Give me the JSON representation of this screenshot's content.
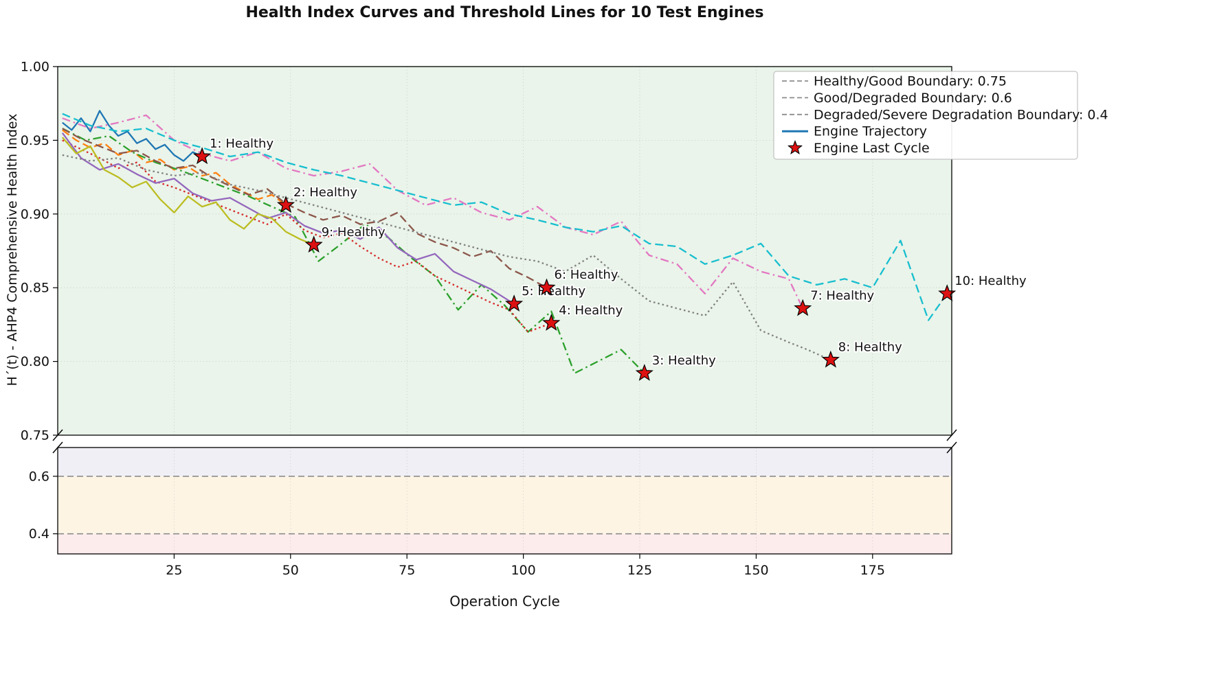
{
  "chart_data": {
    "type": "line",
    "title": "Health Index Curves and Threshold Lines for 10 Test Engines",
    "xlabel": "Operation Cycle",
    "ylabel": "H´(t) - AHP4 Comprehensive Health Index",
    "xlim": [
      0,
      192
    ],
    "x_ticks": [
      25,
      50,
      75,
      100,
      125,
      150,
      175
    ],
    "top_panel": {
      "ylim": [
        0.75,
        1.0
      ],
      "yticks": [
        "1.00",
        "0.95",
        "0.90",
        "0.85",
        "0.80",
        "0.75"
      ],
      "background": "#eaf4ea"
    },
    "bottom_panel": {
      "ylim": [
        0.33,
        0.7
      ],
      "yticks": [
        "0.6",
        "0.4"
      ],
      "bands": [
        {
          "from": 0.7,
          "to": 0.6,
          "color": "#f0eff5"
        },
        {
          "from": 0.6,
          "to": 0.4,
          "color": "#fdf4e4"
        },
        {
          "from": 0.4,
          "to": 0.33,
          "color": "#fdecec"
        }
      ]
    },
    "thresholds": [
      {
        "label": "Healthy/Good Boundary: 0.75",
        "value": 0.75
      },
      {
        "label": "Good/Degraded Boundary: 0.6",
        "value": 0.6
      },
      {
        "label": "Degraded/Severe Degradation Boundary: 0.4",
        "value": 0.4
      }
    ],
    "threshold_color": "#8c8c8c",
    "legend": {
      "entries": [
        {
          "label": "Healthy/Good Boundary: 0.75",
          "sample": "dashed",
          "color": "#8c8c8c"
        },
        {
          "label": "Good/Degraded Boundary: 0.6",
          "sample": "dashed",
          "color": "#8c8c8c"
        },
        {
          "label": "Degraded/Severe Degradation Boundary: 0.4",
          "sample": "dashed",
          "color": "#8c8c8c"
        },
        {
          "label": "Engine Trajectory",
          "sample": "solid",
          "color": "#1f77b4"
        },
        {
          "label": "Engine Last Cycle",
          "sample": "star",
          "color": "#dd1111"
        }
      ]
    },
    "marker": {
      "color": "#dd1111",
      "edge": "#000000"
    },
    "series": [
      {
        "name": "Engine 1",
        "status_label": "1: Healthy",
        "color": "#1f77b4",
        "linestyle": "solid",
        "x": [
          1,
          3,
          5,
          7,
          9,
          11,
          13,
          15,
          17,
          19,
          21,
          23,
          25,
          27,
          29,
          31
        ],
        "y": [
          0.962,
          0.957,
          0.965,
          0.956,
          0.97,
          0.96,
          0.953,
          0.956,
          0.948,
          0.951,
          0.944,
          0.947,
          0.94,
          0.936,
          0.942,
          0.939
        ]
      },
      {
        "name": "Engine 2",
        "status_label": "2: Healthy",
        "color": "#ff7f0e",
        "linestyle": "dashed",
        "x": [
          1,
          4,
          7,
          10,
          13,
          16,
          19,
          22,
          25,
          28,
          31,
          34,
          37,
          40,
          43,
          46,
          49
        ],
        "y": [
          0.957,
          0.95,
          0.945,
          0.948,
          0.94,
          0.943,
          0.935,
          0.937,
          0.93,
          0.932,
          0.926,
          0.928,
          0.92,
          0.915,
          0.91,
          0.913,
          0.906
        ]
      },
      {
        "name": "Engine 3",
        "status_label": "3: Healthy",
        "color": "#2ca02c",
        "linestyle": "dashdot",
        "x": [
          1,
          6,
          11,
          16,
          21,
          26,
          31,
          36,
          41,
          46,
          51,
          56,
          61,
          66,
          71,
          76,
          81,
          86,
          91,
          96,
          101,
          106,
          111,
          116,
          121,
          126
        ],
        "y": [
          0.958,
          0.95,
          0.953,
          0.942,
          0.935,
          0.93,
          0.924,
          0.918,
          0.912,
          0.905,
          0.898,
          0.868,
          0.88,
          0.893,
          0.884,
          0.87,
          0.858,
          0.835,
          0.852,
          0.838,
          0.82,
          0.834,
          0.792,
          0.8,
          0.808,
          0.792
        ]
      },
      {
        "name": "Engine 4",
        "status_label": "4: Healthy",
        "color": "#d62728",
        "linestyle": "dotted",
        "x": [
          1,
          5,
          9,
          13,
          17,
          21,
          25,
          29,
          33,
          37,
          41,
          45,
          49,
          53,
          57,
          61,
          65,
          69,
          73,
          77,
          81,
          85,
          89,
          93,
          97,
          101,
          106
        ],
        "y": [
          0.95,
          0.944,
          0.938,
          0.931,
          0.935,
          0.922,
          0.918,
          0.913,
          0.908,
          0.903,
          0.898,
          0.893,
          0.9,
          0.889,
          0.884,
          0.887,
          0.878,
          0.87,
          0.864,
          0.868,
          0.858,
          0.852,
          0.846,
          0.84,
          0.835,
          0.82,
          0.826
        ]
      },
      {
        "name": "Engine 5",
        "status_label": "5: Healthy",
        "color": "#9467bd",
        "linestyle": "solid",
        "x": [
          1,
          5,
          9,
          13,
          17,
          21,
          25,
          29,
          33,
          37,
          41,
          45,
          49,
          53,
          57,
          61,
          65,
          69,
          73,
          77,
          81,
          85,
          89,
          93,
          98
        ],
        "y": [
          0.955,
          0.938,
          0.93,
          0.934,
          0.927,
          0.921,
          0.924,
          0.914,
          0.909,
          0.911,
          0.904,
          0.897,
          0.901,
          0.892,
          0.887,
          0.889,
          0.883,
          0.891,
          0.877,
          0.869,
          0.873,
          0.861,
          0.855,
          0.849,
          0.839
        ]
      },
      {
        "name": "Engine 6",
        "status_label": "6: Healthy",
        "color": "#8c564b",
        "linestyle": "dashed",
        "x": [
          1,
          5,
          9,
          13,
          17,
          21,
          25,
          29,
          33,
          37,
          41,
          45,
          49,
          53,
          57,
          61,
          65,
          69,
          73,
          77,
          81,
          85,
          89,
          93,
          97,
          101,
          105
        ],
        "y": [
          0.958,
          0.951,
          0.946,
          0.941,
          0.943,
          0.936,
          0.931,
          0.933,
          0.925,
          0.919,
          0.913,
          0.917,
          0.907,
          0.901,
          0.896,
          0.899,
          0.893,
          0.895,
          0.901,
          0.887,
          0.881,
          0.877,
          0.871,
          0.875,
          0.863,
          0.857,
          0.85
        ]
      },
      {
        "name": "Engine 7",
        "status_label": "7: Healthy",
        "color": "#e377c2",
        "linestyle": "dashdot",
        "x": [
          1,
          7,
          13,
          19,
          25,
          31,
          37,
          43,
          49,
          55,
          61,
          67,
          73,
          79,
          85,
          91,
          97,
          103,
          109,
          115,
          121,
          127,
          133,
          139,
          145,
          151,
          157,
          160
        ],
        "y": [
          0.965,
          0.958,
          0.962,
          0.967,
          0.95,
          0.941,
          0.936,
          0.942,
          0.931,
          0.926,
          0.929,
          0.934,
          0.916,
          0.906,
          0.911,
          0.901,
          0.896,
          0.905,
          0.891,
          0.886,
          0.895,
          0.872,
          0.866,
          0.846,
          0.87,
          0.861,
          0.856,
          0.836
        ]
      },
      {
        "name": "Engine 8",
        "status_label": "8: Healthy",
        "color": "#7f7f7f",
        "linestyle": "dotted",
        "x": [
          1,
          7,
          13,
          19,
          25,
          31,
          37,
          43,
          49,
          55,
          61,
          67,
          73,
          79,
          85,
          91,
          97,
          103,
          109,
          115,
          121,
          127,
          133,
          139,
          145,
          151,
          157,
          161,
          166
        ],
        "y": [
          0.94,
          0.936,
          0.938,
          0.93,
          0.926,
          0.928,
          0.92,
          0.916,
          0.911,
          0.906,
          0.901,
          0.896,
          0.891,
          0.886,
          0.881,
          0.876,
          0.871,
          0.868,
          0.861,
          0.872,
          0.856,
          0.841,
          0.836,
          0.831,
          0.854,
          0.821,
          0.813,
          0.808,
          0.801
        ]
      },
      {
        "name": "Engine 9",
        "status_label": "9: Healthy",
        "color": "#bcbd22",
        "linestyle": "solid",
        "x": [
          1,
          4,
          7,
          10,
          13,
          16,
          19,
          22,
          25,
          28,
          31,
          34,
          37,
          40,
          43,
          46,
          49,
          52,
          55
        ],
        "y": [
          0.952,
          0.941,
          0.946,
          0.93,
          0.925,
          0.918,
          0.922,
          0.91,
          0.901,
          0.912,
          0.905,
          0.908,
          0.896,
          0.89,
          0.9,
          0.897,
          0.888,
          0.883,
          0.879
        ]
      },
      {
        "name": "Engine 10",
        "status_label": "10: Healthy",
        "color": "#17becf",
        "linestyle": "dashed",
        "x": [
          1,
          7,
          13,
          19,
          25,
          31,
          37,
          43,
          49,
          55,
          61,
          67,
          73,
          79,
          85,
          91,
          97,
          103,
          109,
          115,
          121,
          127,
          133,
          139,
          145,
          151,
          157,
          163,
          169,
          175,
          181,
          187,
          191
        ],
        "y": [
          0.968,
          0.96,
          0.956,
          0.958,
          0.95,
          0.945,
          0.939,
          0.942,
          0.935,
          0.93,
          0.926,
          0.921,
          0.916,
          0.911,
          0.906,
          0.908,
          0.9,
          0.896,
          0.891,
          0.888,
          0.892,
          0.88,
          0.878,
          0.866,
          0.872,
          0.88,
          0.858,
          0.852,
          0.856,
          0.85,
          0.882,
          0.828,
          0.846
        ]
      }
    ]
  }
}
